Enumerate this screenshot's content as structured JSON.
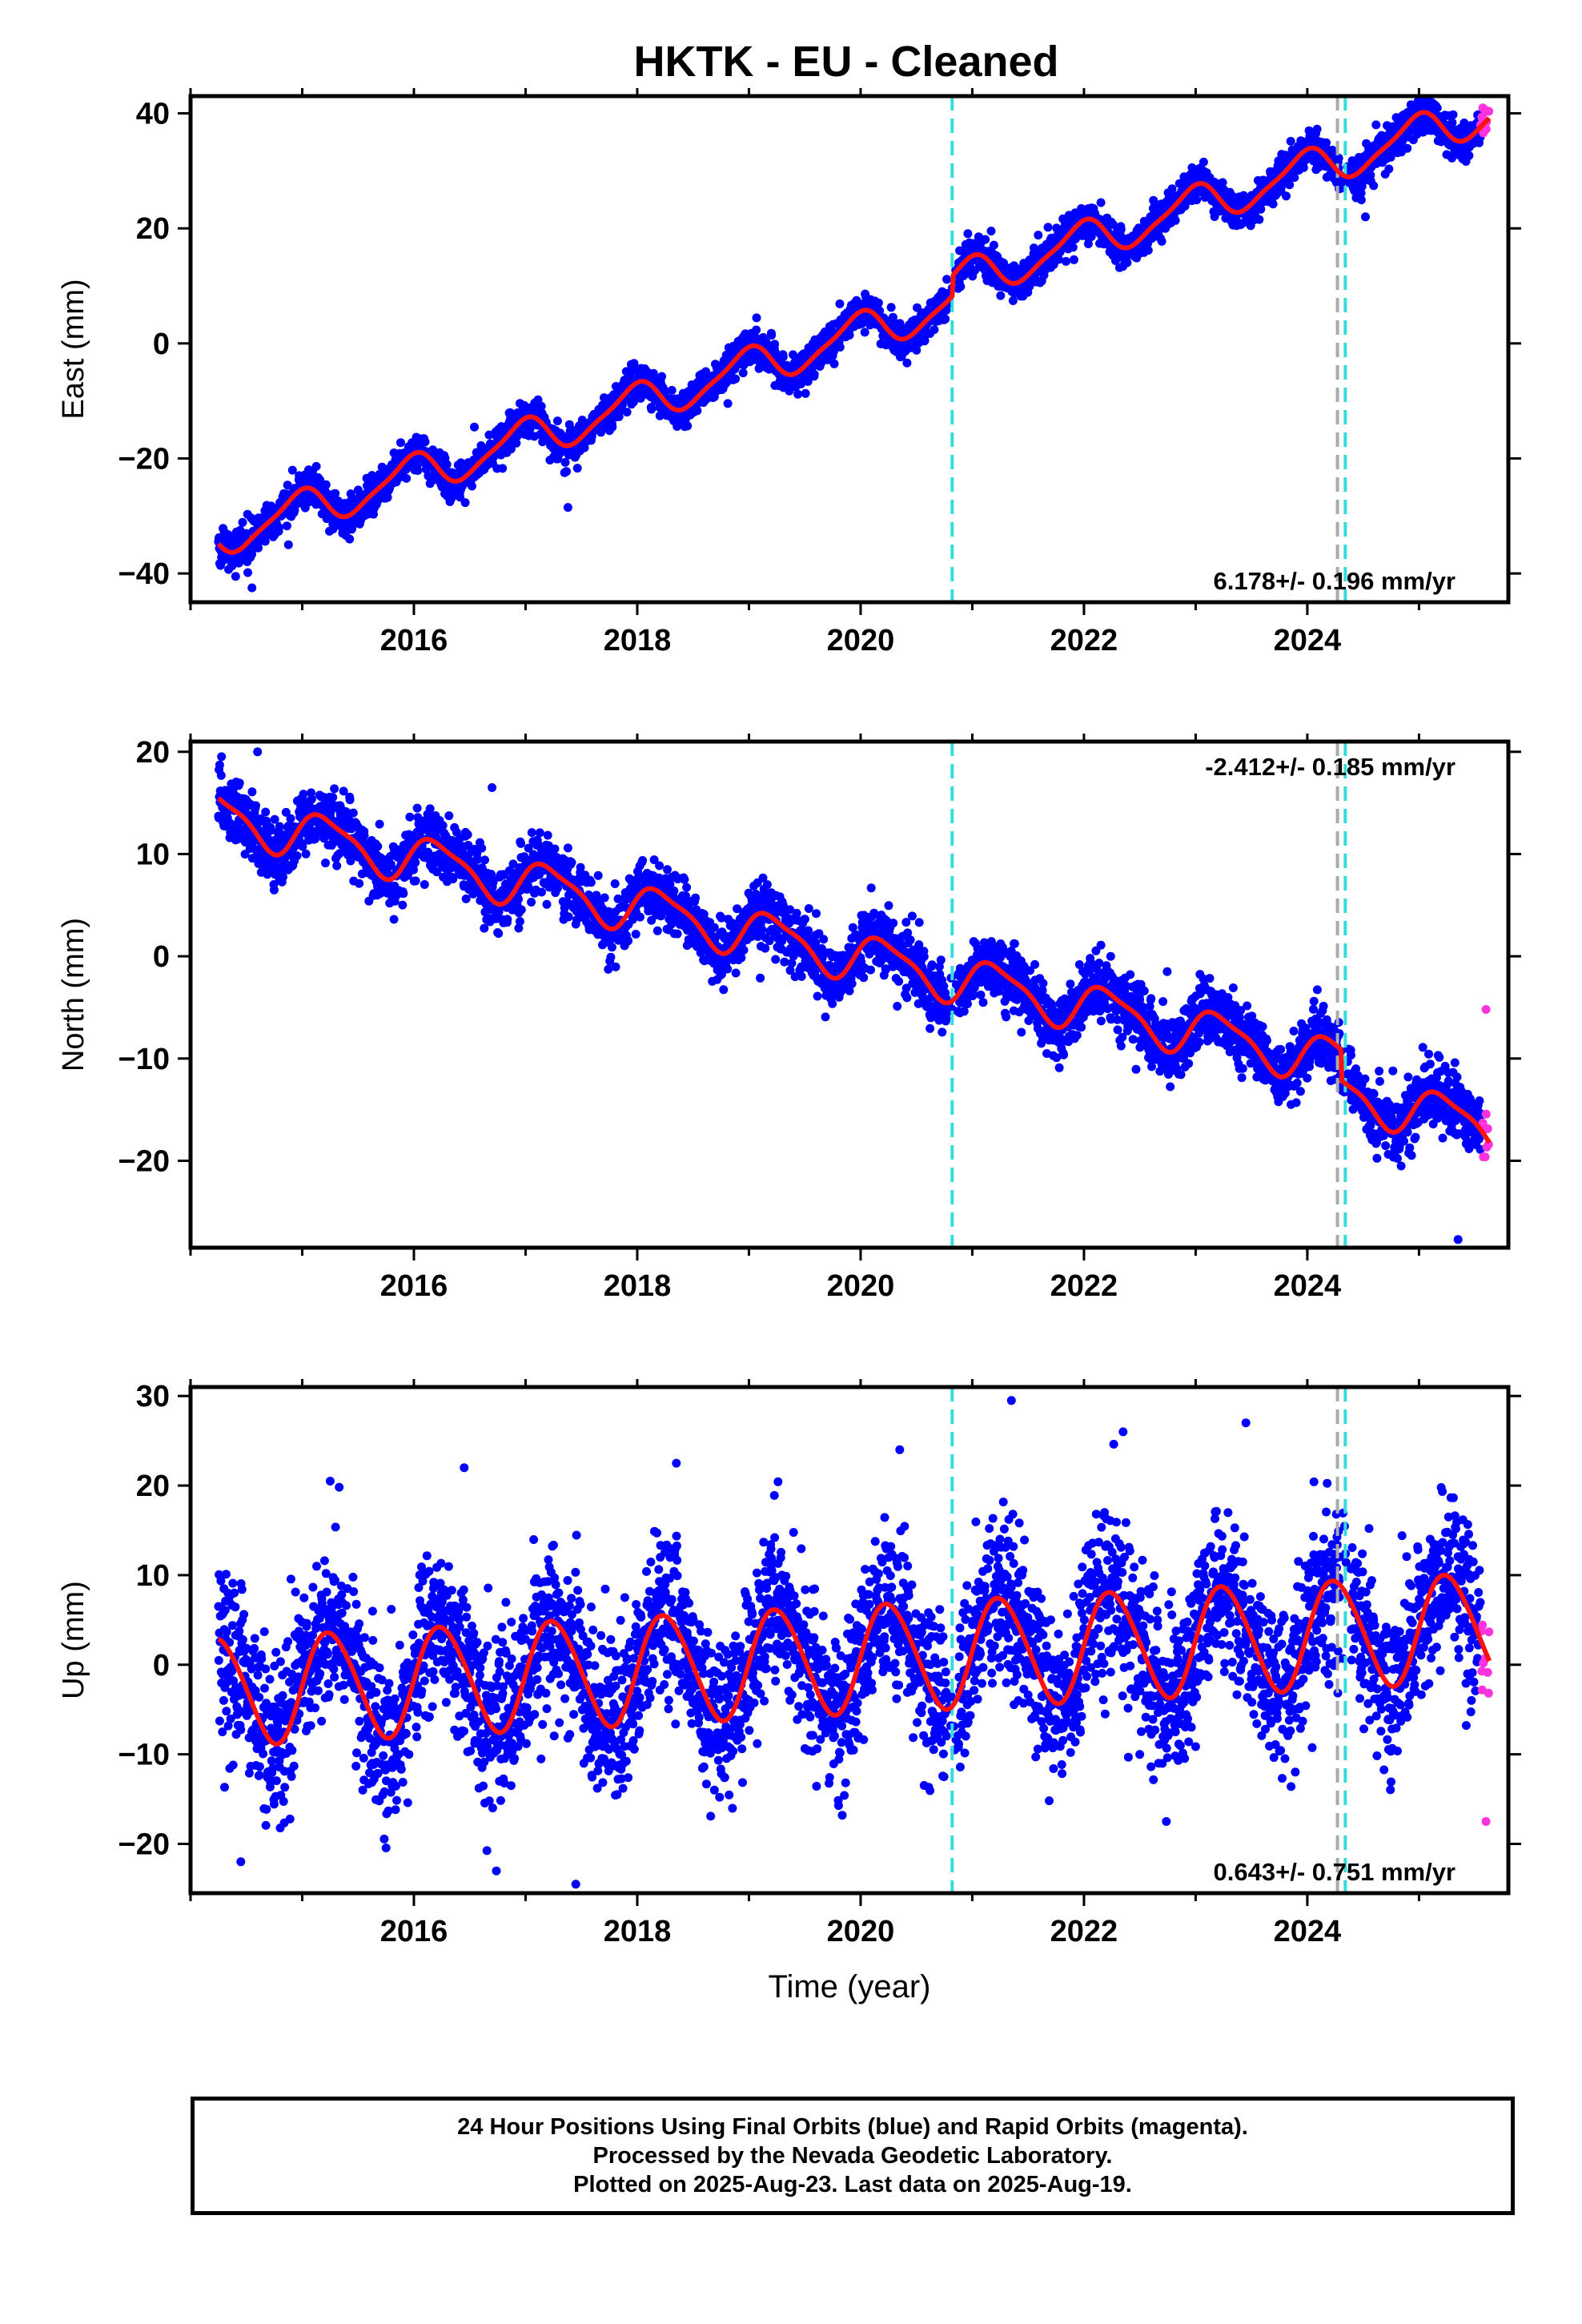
{
  "title": "HKTK  - EU - Cleaned",
  "colors": {
    "final": "#0000ff",
    "rapid": "#ff33dd",
    "model": "#ff1111",
    "offset": "#33dddd",
    "equipment": "#aaaaaa",
    "frame": "#000000"
  },
  "footer": {
    "line1": "24 Hour Positions Using Final Orbits (blue) and Rapid Orbits (magenta).",
    "line2": "Processed by the Nevada Geodetic Laboratory.",
    "line3": "Plotted on 2025-Aug-23. Last data on 2025-Aug-19."
  },
  "chart_data": [
    {
      "type": "scatter",
      "ylabel": "East (mm)",
      "xlabel": "",
      "xlim": [
        2014.0,
        2025.8
      ],
      "ylim": [
        -45,
        43
      ],
      "xticks": [
        2016,
        2018,
        2020,
        2022,
        2024
      ],
      "yticks": [
        -40,
        -20,
        0,
        20,
        40
      ],
      "rate_label": "6.178+/- 0.196 mm/yr",
      "rate_position": "bottom-right",
      "data_start": 2014.25,
      "data_end": 2025.63,
      "rapid_start": 2025.55,
      "offset_lines": [
        2020.82,
        2024.34
      ],
      "equipment_lines": [
        2024.27
      ],
      "model": {
        "at_2015": -29,
        "slope": 6.178,
        "steps": [
          [
            2020.82,
            3.5
          ]
        ],
        "annual_amp": 3.3,
        "annual_phase": 1.8,
        "semi_amp": 0.8,
        "semi_phase": 0.6
      },
      "scatter_sigma": 1.5,
      "outliers": [
        [
          2014.55,
          -42.5
        ],
        [
          2024.52,
          22.0
        ]
      ]
    },
    {
      "type": "scatter",
      "ylabel": "North (mm)",
      "xlabel": "",
      "xlim": [
        2014.0,
        2025.8
      ],
      "ylim": [
        -28.5,
        21
      ],
      "xticks": [
        2016,
        2018,
        2020,
        2022,
        2024
      ],
      "yticks": [
        -20,
        -10,
        0,
        10,
        20
      ],
      "rate_label": "-2.412+/- 0.185 mm/yr",
      "rate_position": "top-right",
      "data_start": 2014.25,
      "data_end": 2025.63,
      "rapid_start": 2025.55,
      "offset_lines": [
        2020.82,
        2024.34
      ],
      "equipment_lines": [
        2024.27
      ],
      "model": {
        "at_2015": 12.0,
        "slope": -2.412,
        "steps": [
          [
            2024.3,
            -3.0
          ]
        ],
        "annual_amp": 2.2,
        "annual_phase": 0.2,
        "semi_amp": 0.6,
        "semi_phase": 1.0
      },
      "scatter_sigma": 1.5,
      "outliers": [
        [
          2014.6,
          20.0
        ],
        [
          2016.7,
          16.5
        ],
        [
          2025.35,
          -27.7
        ],
        [
          2025.6,
          -5.2
        ]
      ]
    },
    {
      "type": "scatter",
      "ylabel": "Up (mm)",
      "xlabel": "Time (year)",
      "xlim": [
        2014.0,
        2025.8
      ],
      "ylim": [
        -25.5,
        31
      ],
      "xticks": [
        2016,
        2018,
        2020,
        2022,
        2024
      ],
      "yticks": [
        -20,
        -10,
        0,
        10,
        20,
        30
      ],
      "rate_label": "0.643+/- 0.751 mm/yr",
      "rate_position": "bottom-right",
      "data_start": 2014.25,
      "data_end": 2025.63,
      "rapid_start": 2025.55,
      "offset_lines": [
        2020.82,
        2024.34
      ],
      "equipment_lines": [
        2024.27
      ],
      "model": {
        "at_2015": -2.5,
        "slope": 0.643,
        "steps": [],
        "annual_amp": 6.0,
        "annual_phase": 0.0,
        "semi_amp": 0.5,
        "semi_phase": 0.3
      },
      "scatter_sigma": 4.5,
      "outliers": [
        [
          2014.45,
          -22.0
        ],
        [
          2015.25,
          20.5
        ],
        [
          2016.45,
          22.0
        ],
        [
          2017.45,
          -24.5
        ],
        [
          2018.35,
          22.5
        ],
        [
          2020.35,
          24.0
        ],
        [
          2021.35,
          29.5
        ],
        [
          2022.35,
          26.0
        ],
        [
          2023.45,
          27.0
        ],
        [
          2025.6,
          -17.5
        ]
      ]
    }
  ]
}
